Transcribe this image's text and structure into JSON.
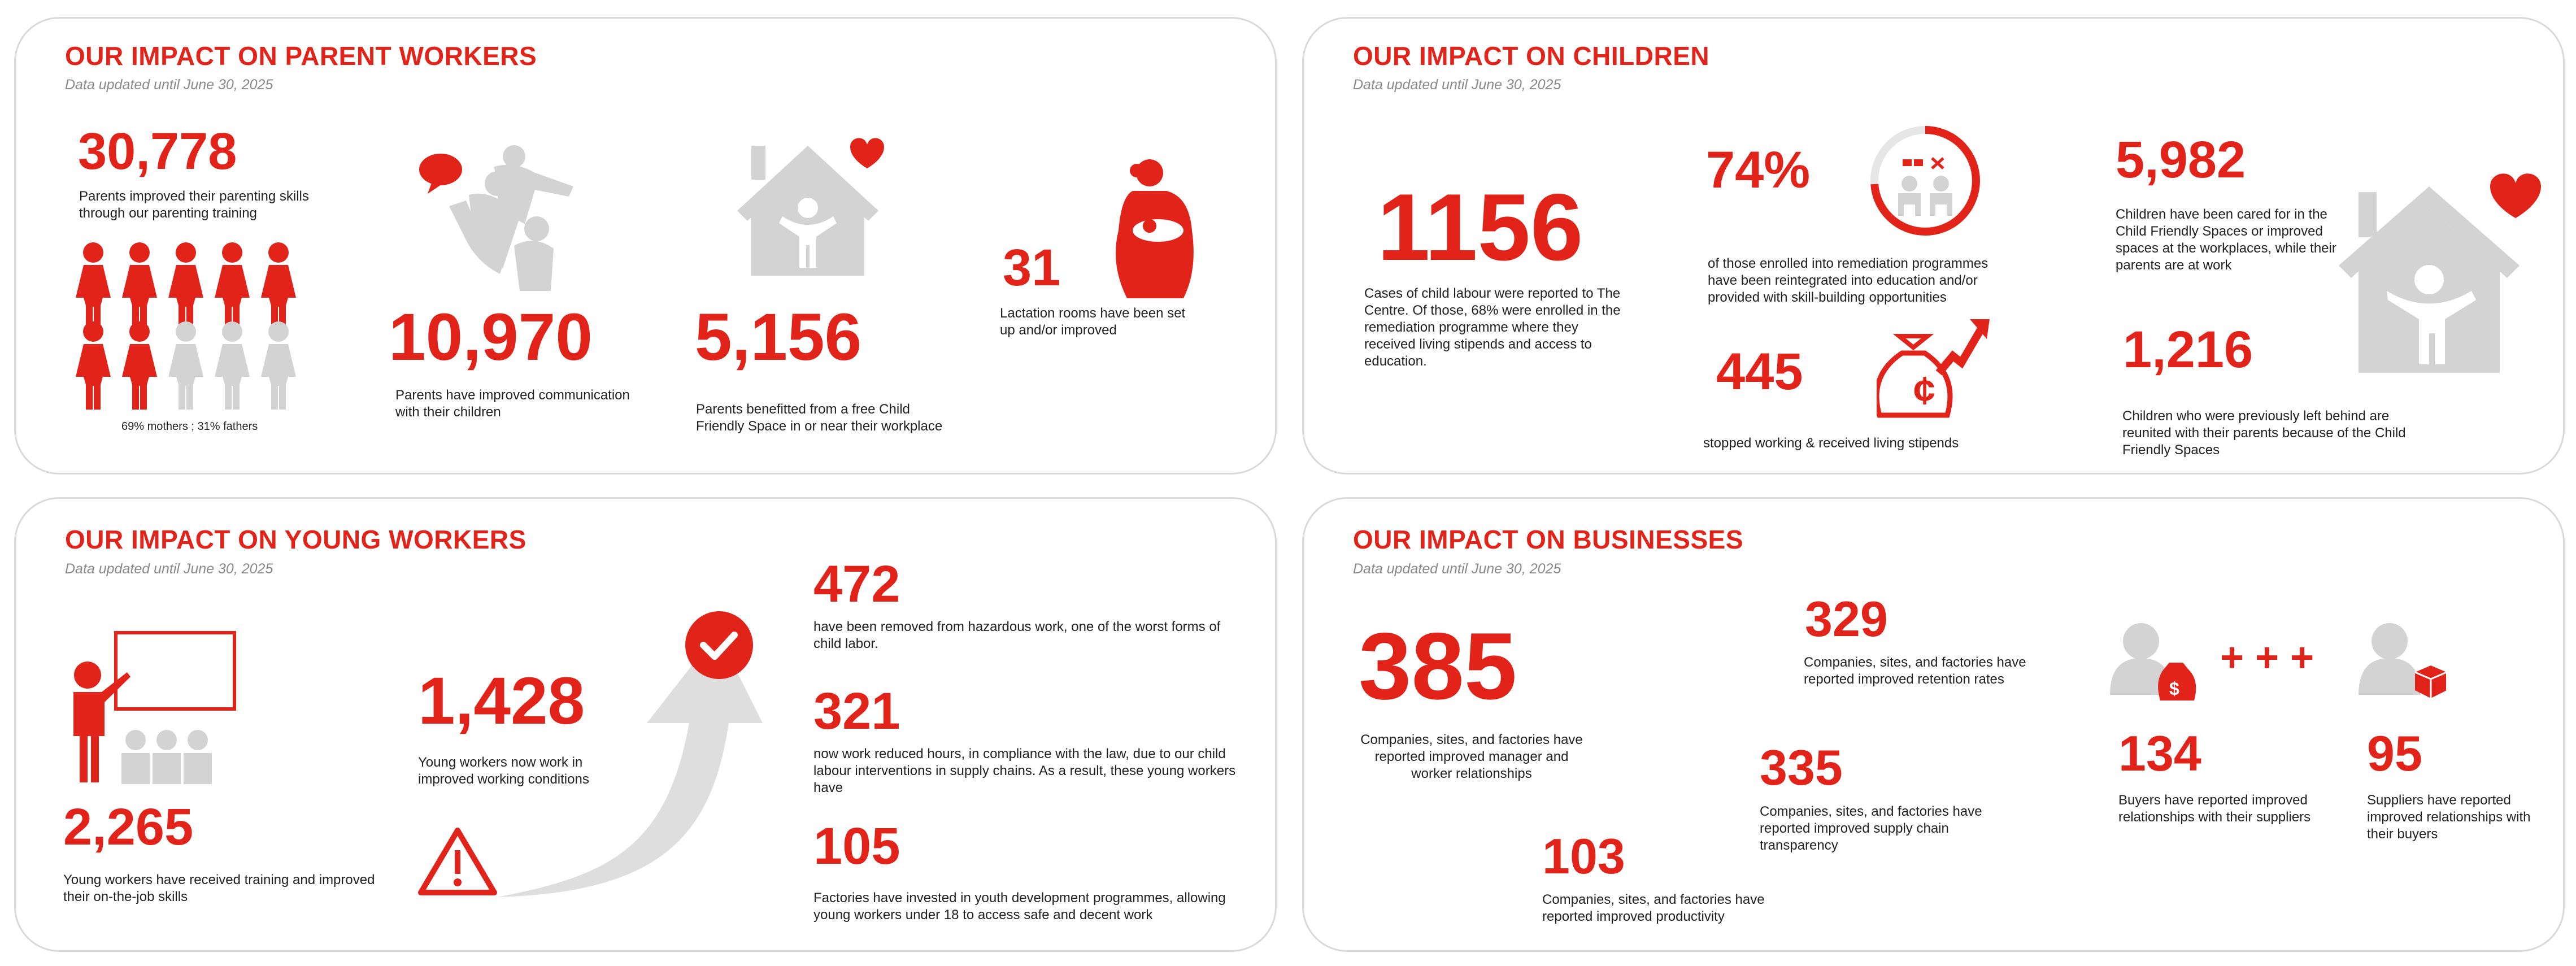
{
  "parents": {
    "title": "OUR IMPACT ON PARENT WORKERS",
    "date": "Data updated until June 30, 2025",
    "s1": {
      "value": "30,778",
      "text": "Parents improved their parenting skills through our parenting training"
    },
    "ratio": "69% mothers ; 31% fathers",
    "s2": {
      "value": "10,970",
      "text": "Parents have improved communication with their children"
    },
    "s3": {
      "value": "5,156",
      "text": "Parents benefitted from a free Child Friendly Space in or near their workplace"
    },
    "s4": {
      "value": "31",
      "text": "Lactation rooms have been set up and/or improved"
    }
  },
  "children": {
    "title": "OUR IMPACT ON CHILDREN",
    "date": "Data updated until June 30, 2025",
    "s1": {
      "value": "1156",
      "text": "Cases of child labour were reported to The Centre. Of those, 68% were enrolled in the remediation programme where they received living stipends and access to education."
    },
    "s2": {
      "value": "74%",
      "text": "of those enrolled into remediation programmes have been reintegrated into education and/or provided with skill-building opportunities"
    },
    "s3": {
      "value": "445",
      "text": "stopped working & received living stipends"
    },
    "s4": {
      "value": "5,982",
      "text": "Children have been cared for in the Child Friendly Spaces or improved spaces at the workplaces, while their parents are at work"
    },
    "s5": {
      "value": "1,216",
      "text": "Children  who were previously left behind are reunited with their parents because of the Child Friendly Spaces"
    }
  },
  "young": {
    "title": "OUR IMPACT ON YOUNG WORKERS",
    "date": "Data updated until June 30, 2025",
    "s1": {
      "value": "2,265",
      "text": "Young workers have received training and improved their on-the-job skills"
    },
    "s2": {
      "value": "1,428",
      "text": "Young workers now work in improved working conditions"
    },
    "s3": {
      "value": "472",
      "text": "have been removed from hazardous work, one of the worst forms of child labor."
    },
    "s4": {
      "value": "321",
      "text": "now work reduced hours, in compliance with the law, due to our child labour interventions in supply chains. As a result, these young workers have"
    },
    "s5": {
      "value": "105",
      "text": "Factories have invested in youth development programmes, allowing young workers under 18 to access safe and decent work"
    }
  },
  "business": {
    "title": "OUR IMPACT ON BUSINESSES",
    "date": "Data updated until June 30, 2025",
    "s1": {
      "value": "385",
      "text": "Companies, sites, and factories have reported improved manager and worker relationships"
    },
    "s2": {
      "value": "329",
      "text": "Companies, sites, and factories have reported improved retention rates"
    },
    "s3": {
      "value": "335",
      "text": "Companies, sites, and factories have reported improved supply chain transparency"
    },
    "s4": {
      "value": "103",
      "text": "Companies, sites, and factories have reported improved productivity"
    },
    "s5": {
      "value": "134",
      "text": "Buyers have reported improved relationships with their suppliers"
    },
    "s6": {
      "value": "95",
      "text": "Suppliers have reported improved relationships with their buyers"
    },
    "plus": "+ + +"
  },
  "colors": {
    "accent": "#e2231a",
    "icon_grey": "#d3d3d3",
    "border": "#d9d9d9"
  },
  "icons": [
    "women-icon",
    "family-icon",
    "speech-heart-icon",
    "house-child-icon",
    "heart-icon",
    "breastfeeding-mother-icon",
    "progress-ring-icon",
    "children-icon",
    "money-bag-icon",
    "growth-arrow-icon",
    "teacher-icon",
    "students-icon",
    "warning-icon",
    "check-circle-icon",
    "curved-arrow-icon",
    "buyer-money-icon",
    "supplier-box-icon"
  ]
}
